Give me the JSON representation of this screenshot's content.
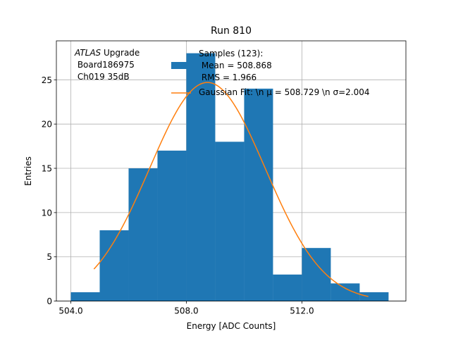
{
  "chart_data": {
    "type": "bar",
    "title": "Run 810",
    "xlabel": "Energy [ADC Counts]",
    "ylabel": "Entries",
    "xlim": [
      503.5,
      515.6
    ],
    "ylim": [
      0,
      29.4
    ],
    "grid": true,
    "x_ticks": [
      {
        "value": 504.0,
        "label": "504.0"
      },
      {
        "value": 508.0,
        "label": "508.0"
      },
      {
        "value": 512.0,
        "label": "512.0"
      }
    ],
    "y_ticks": [
      {
        "value": 0,
        "label": "0"
      },
      {
        "value": 5,
        "label": "5"
      },
      {
        "value": 10,
        "label": "10"
      },
      {
        "value": 15,
        "label": "15"
      },
      {
        "value": 20,
        "label": "20"
      },
      {
        "value": 25,
        "label": "25"
      }
    ],
    "histogram": {
      "name": "Samples (123):",
      "bin_edges": [
        504.0,
        505.0,
        506.0,
        507.0,
        508.0,
        509.0,
        510.0,
        511.0,
        512.0,
        513.0,
        514.0,
        515.0
      ],
      "counts": [
        1,
        8,
        15,
        17,
        28,
        18,
        24,
        3,
        6,
        2,
        1
      ],
      "color": "#1f77b4"
    },
    "fit": {
      "name": "Gaussian Fit",
      "mu": 508.729,
      "sigma": 2.004,
      "amplitude": 24.7,
      "x_range": [
        504.8,
        514.3
      ],
      "color": "#ff7f0e"
    },
    "legend": {
      "position": "top-right",
      "entries": [
        "Samples (123):\n Mean = 508.868\n RMS = 1.966",
        "Gaussian Fit: \\n μ = 508.729 \\n σ=2.004"
      ]
    },
    "annotation": {
      "experiment": "ATLAS",
      "suffix": " Upgrade",
      "lines": [
        " Board186975",
        " Ch019 35dB"
      ]
    }
  }
}
